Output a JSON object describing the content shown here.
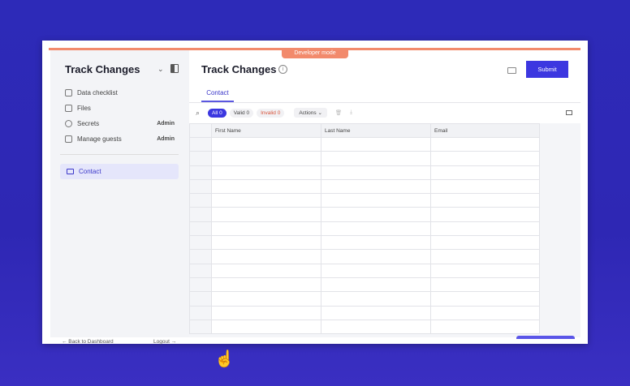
{
  "banner": "Developer mode",
  "sidebar": {
    "title": "Track Changes",
    "items": [
      {
        "label": "Data checklist",
        "badge": ""
      },
      {
        "label": "Files",
        "badge": ""
      },
      {
        "label": "Secrets",
        "badge": "Admin"
      },
      {
        "label": "Manage guests",
        "badge": "Admin"
      }
    ],
    "sheet": "Contact",
    "back": "← Back to Dashboard",
    "logout": "Logout →"
  },
  "header": {
    "title": "Track Changes",
    "info": "i",
    "submit": "Submit"
  },
  "tabs": [
    "Contact"
  ],
  "filters": {
    "all": "All 0",
    "valid": "Valid 0",
    "invalid": "Invalid 0",
    "actions": "Actions ⌄"
  },
  "table": {
    "columns": [
      "First Name",
      "Last Name",
      "Email"
    ]
  },
  "colors": {
    "accent": "#3c37e0",
    "banner": "#f28a6c"
  }
}
